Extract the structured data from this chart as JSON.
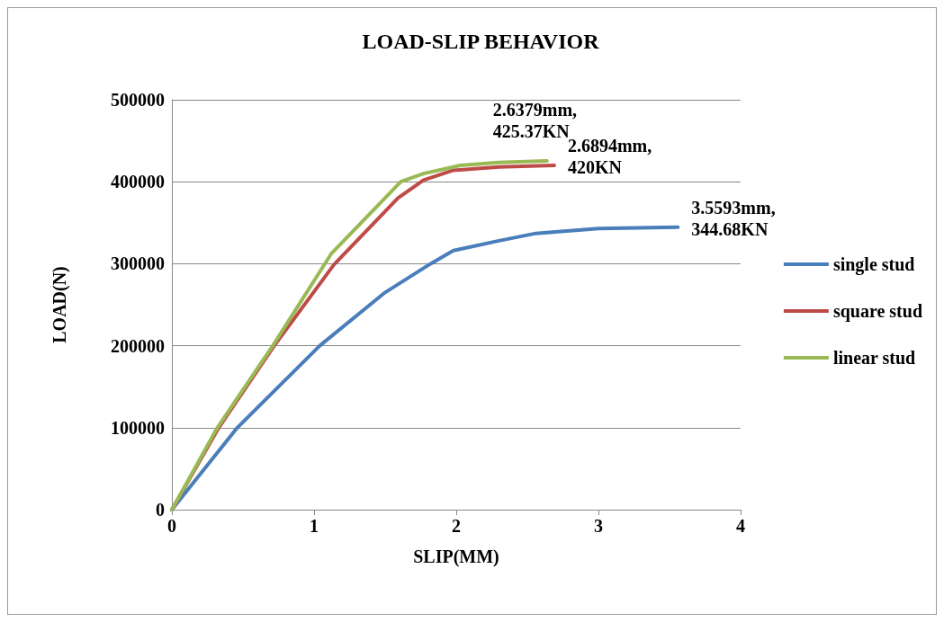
{
  "chart_data": {
    "type": "line",
    "title": "LOAD-SLIP BEHAVIOR",
    "xlabel": "SLIP(MM)",
    "ylabel": "LOAD(N)",
    "xlim": [
      0,
      4
    ],
    "xticks": [
      0,
      1,
      2,
      3,
      4
    ],
    "ylim": [
      0,
      500000
    ],
    "yticks": [
      0,
      100000,
      200000,
      300000,
      400000,
      500000
    ],
    "grid": "y",
    "legend": "right",
    "marker": "none",
    "line_style": "solid",
    "series": [
      {
        "name": "single stud",
        "color": "#4a7ebb",
        "x": [
          0,
          0.46,
          1.04,
          1.5,
          1.82,
          1.98,
          2.3,
          2.56,
          3.0,
          3.5593
        ],
        "values": [
          0,
          100000,
          200000,
          265000,
          300000,
          316000,
          328000,
          337000,
          343000,
          344680
        ]
      },
      {
        "name": "square stud",
        "color": "#be4b48",
        "x": [
          0,
          0.33,
          0.72,
          1.14,
          1.59,
          1.77,
          1.98,
          2.3,
          2.6894
        ],
        "values": [
          0,
          100000,
          200000,
          299000,
          380000,
          402000,
          414000,
          418000,
          420000
        ]
      },
      {
        "name": "linear stud",
        "color": "#98b954",
        "x": [
          0,
          0.32,
          0.71,
          1.12,
          1.61,
          1.77,
          2.03,
          2.3,
          2.6379
        ],
        "values": [
          0,
          100000,
          200000,
          312000,
          400000,
          410000,
          420000,
          423500,
          425370
        ]
      }
    ],
    "annotations": [
      {
        "text": "2.6379mm,\n425.37KN",
        "x": 2.6379,
        "y": 425370
      },
      {
        "text": "2.6894mm,\n420KN",
        "x": 2.6894,
        "y": 420000
      },
      {
        "text": "3.5593mm,\n344.68KN",
        "x": 3.5593,
        "y": 344680
      }
    ]
  }
}
